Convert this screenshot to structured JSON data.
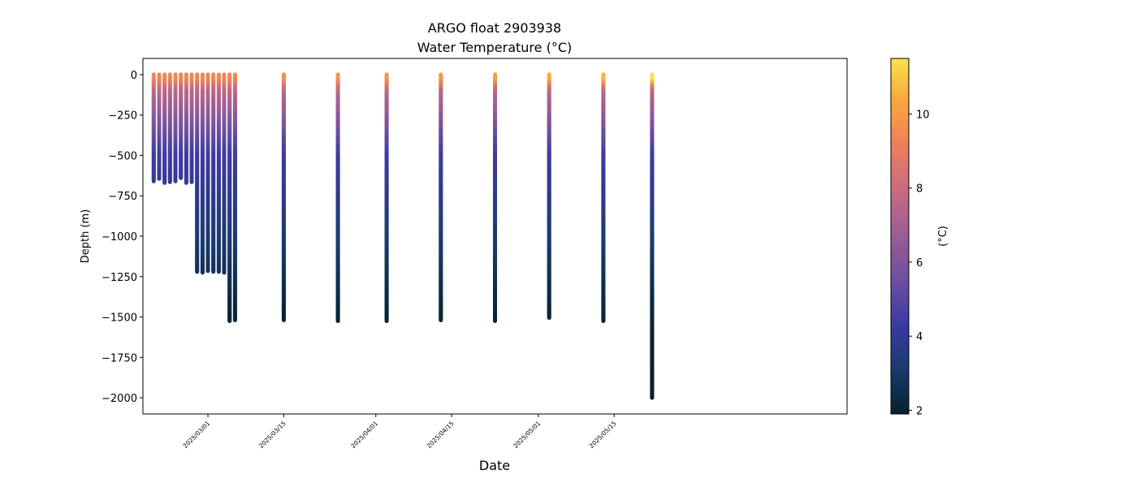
{
  "chart_data": {
    "type": "scatter",
    "title": "ARGO float 2903938",
    "subtitle": "Water Temperature (°C)",
    "xlabel": "Date",
    "ylabel": "Depth (m)",
    "colorbar_label": "(°C)",
    "ylim": [
      -2100,
      100
    ],
    "yticks": [
      0,
      -250,
      -500,
      -750,
      -1000,
      -1250,
      -1500,
      -1750,
      -2000
    ],
    "ytick_labels": [
      "0",
      "−250",
      "−500",
      "−750",
      "−1000",
      "−1250",
      "−1500",
      "−1750",
      "−2000"
    ],
    "xlim": [
      "2025-02-17",
      "2025-06-27"
    ],
    "xticks": [
      "2025-03-01",
      "2025-03-15",
      "2025-04-01",
      "2025-04-15",
      "2025-05-01",
      "2025-05-15"
    ],
    "xtick_labels": [
      "2025/03/01",
      "2025/03/15",
      "2025/04/01",
      "2025/04/15",
      "2025/05/01",
      "2025/05/15"
    ],
    "colorbar": {
      "colormap": "thermal",
      "range": [
        1.9,
        11.5
      ],
      "ticks": [
        2,
        4,
        6,
        8,
        10
      ],
      "tick_labels": [
        "2",
        "4",
        "6",
        "8",
        "10"
      ],
      "colors": [
        "#04202c",
        "#1a3a6e",
        "#3b3aa0",
        "#6b4fa0",
        "#9a5d96",
        "#c76a82",
        "#ec7d5c",
        "#f9a43b",
        "#f7e24b"
      ]
    },
    "grid": false,
    "legend": "none",
    "profiles": [
      {
        "date": "2025-02-19",
        "max_depth": -660,
        "surface_temp": 9.4
      },
      {
        "date": "2025-02-20",
        "max_depth": -645,
        "surface_temp": 9.4
      },
      {
        "date": "2025-02-21",
        "max_depth": -670,
        "surface_temp": 9.4
      },
      {
        "date": "2025-02-22",
        "max_depth": -665,
        "surface_temp": 9.4
      },
      {
        "date": "2025-02-23",
        "max_depth": -660,
        "surface_temp": 9.4
      },
      {
        "date": "2025-02-24",
        "max_depth": -640,
        "surface_temp": 9.4
      },
      {
        "date": "2025-02-25",
        "max_depth": -670,
        "surface_temp": 9.4
      },
      {
        "date": "2025-02-26",
        "max_depth": -665,
        "surface_temp": 9.4
      },
      {
        "date": "2025-02-27",
        "max_depth": -1220,
        "surface_temp": 9.4
      },
      {
        "date": "2025-02-28",
        "max_depth": -1225,
        "surface_temp": 9.4
      },
      {
        "date": "2025-03-01",
        "max_depth": -1215,
        "surface_temp": 9.4
      },
      {
        "date": "2025-03-02",
        "max_depth": -1220,
        "surface_temp": 9.4
      },
      {
        "date": "2025-03-03",
        "max_depth": -1220,
        "surface_temp": 9.4
      },
      {
        "date": "2025-03-04",
        "max_depth": -1225,
        "surface_temp": 9.4
      },
      {
        "date": "2025-03-05",
        "max_depth": -1525,
        "surface_temp": 9.4
      },
      {
        "date": "2025-03-06",
        "max_depth": -1520,
        "surface_temp": 9.4
      },
      {
        "date": "2025-03-15",
        "max_depth": -1520,
        "surface_temp": 9.6
      },
      {
        "date": "2025-03-25",
        "max_depth": -1525,
        "surface_temp": 9.8
      },
      {
        "date": "2025-04-03",
        "max_depth": -1525,
        "surface_temp": 9.8
      },
      {
        "date": "2025-04-13",
        "max_depth": -1520,
        "surface_temp": 10.0
      },
      {
        "date": "2025-04-23",
        "max_depth": -1525,
        "surface_temp": 10.2
      },
      {
        "date": "2025-05-03",
        "max_depth": -1505,
        "surface_temp": 10.5
      },
      {
        "date": "2025-05-13",
        "max_depth": -1525,
        "surface_temp": 10.6
      },
      {
        "date": "2025-05-22",
        "max_depth": -2000,
        "surface_temp": 11.5
      }
    ]
  }
}
